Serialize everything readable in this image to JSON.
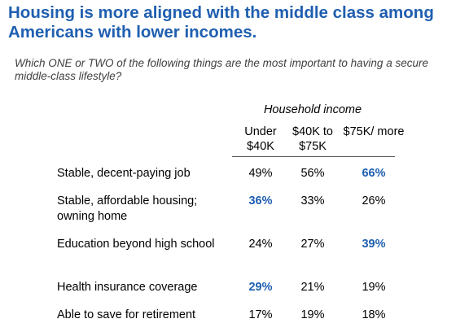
{
  "title": "Housing is more aligned with the middle class among Americans with lower incomes.",
  "question": "Which ONE or TWO of the following things are the most important to having a secure middle-class lifestyle?",
  "colors": {
    "title": "#1f5fb0",
    "highlight": "#1f5fb0"
  },
  "chart_data": {
    "type": "table",
    "column_group": "Household income",
    "columns": [
      "Under $40K",
      "$40K to $75K",
      "$75K/ more"
    ],
    "rows": [
      {
        "label": "Stable, decent-paying job",
        "values": [
          "49%",
          "56%",
          "66%"
        ],
        "highlight": [
          false,
          false,
          true
        ]
      },
      {
        "label": "Stable, affordable housing; owning home",
        "values": [
          "36%",
          "33%",
          "26%"
        ],
        "highlight": [
          true,
          false,
          false
        ]
      },
      {
        "label": "Education beyond high school",
        "values": [
          "24%",
          "27%",
          "39%"
        ],
        "highlight": [
          false,
          false,
          true
        ]
      },
      {
        "label": "Health insurance coverage",
        "values": [
          "29%",
          "21%",
          "19%"
        ],
        "highlight": [
          true,
          false,
          false
        ]
      },
      {
        "label": "Able to save for retirement",
        "values": [
          "17%",
          "19%",
          "18%"
        ],
        "highlight": [
          false,
          false,
          false
        ]
      }
    ]
  }
}
